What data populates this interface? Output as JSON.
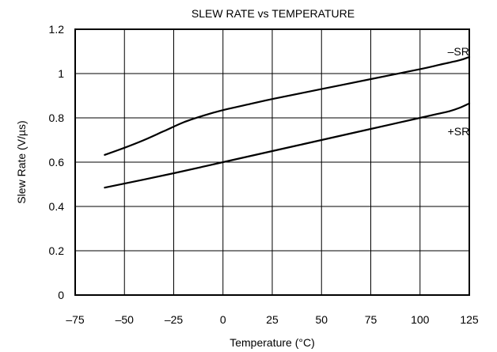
{
  "chart_data": {
    "type": "line",
    "title": "SLEW RATE vs TEMPERATURE",
    "xlabel": "Temperature (°C)",
    "ylabel": "Slew Rate (V/µs)",
    "xlim": [
      -75,
      125
    ],
    "ylim": [
      0,
      1.2
    ],
    "xticks": [
      -75,
      -50,
      -25,
      0,
      25,
      50,
      75,
      100,
      125
    ],
    "yticks": [
      0,
      0.2,
      0.4,
      0.6,
      0.8,
      1,
      1.2
    ],
    "xtick_labels": [
      "–75",
      "–50",
      "–25",
      "0",
      "25",
      "50",
      "75",
      "100",
      "125"
    ],
    "ytick_labels": [
      "0",
      "0.2",
      "0.4",
      "0.6",
      "0.8",
      "1",
      "1.2"
    ],
    "grid": true,
    "series": [
      {
        "name": "–SR",
        "x": [
          -60,
          -50,
          -40,
          -30,
          -20,
          -10,
          0,
          10,
          25,
          50,
          75,
          100,
          110,
          120,
          125
        ],
        "y": [
          0.633,
          0.665,
          0.7,
          0.74,
          0.78,
          0.81,
          0.835,
          0.855,
          0.885,
          0.93,
          0.975,
          1.02,
          1.04,
          1.06,
          1.075
        ]
      },
      {
        "name": "+SR",
        "x": [
          -60,
          -25,
          0,
          25,
          50,
          75,
          100,
          110,
          115,
          120,
          125
        ],
        "y": [
          0.485,
          0.55,
          0.6,
          0.65,
          0.7,
          0.75,
          0.8,
          0.82,
          0.83,
          0.845,
          0.865
        ]
      }
    ],
    "series_labels": [
      {
        "text": "–SR",
        "x": 114,
        "y": 1.1
      },
      {
        "text": "+SR",
        "x": 114,
        "y": 0.74
      }
    ]
  }
}
